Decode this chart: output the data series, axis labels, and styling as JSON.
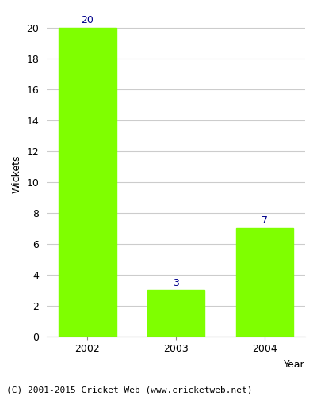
{
  "title": "",
  "categories": [
    "2002",
    "2003",
    "2004"
  ],
  "values": [
    20,
    3,
    7
  ],
  "bar_color": "#7fff00",
  "bar_edge_color": "#7fff00",
  "xlabel": "Year",
  "ylabel": "Wickets",
  "ylim": [
    0,
    21
  ],
  "yticks": [
    0,
    2,
    4,
    6,
    8,
    10,
    12,
    14,
    16,
    18,
    20
  ],
  "annotation_color": "#00008b",
  "annotation_fontsize": 9,
  "label_fontsize": 9,
  "tick_fontsize": 9,
  "footer_text": "(C) 2001-2015 Cricket Web (www.cricketweb.net)",
  "footer_fontsize": 8,
  "background_color": "#ffffff",
  "grid_color": "#cccccc",
  "axes_background": "#ffffff",
  "bar_width": 0.65
}
